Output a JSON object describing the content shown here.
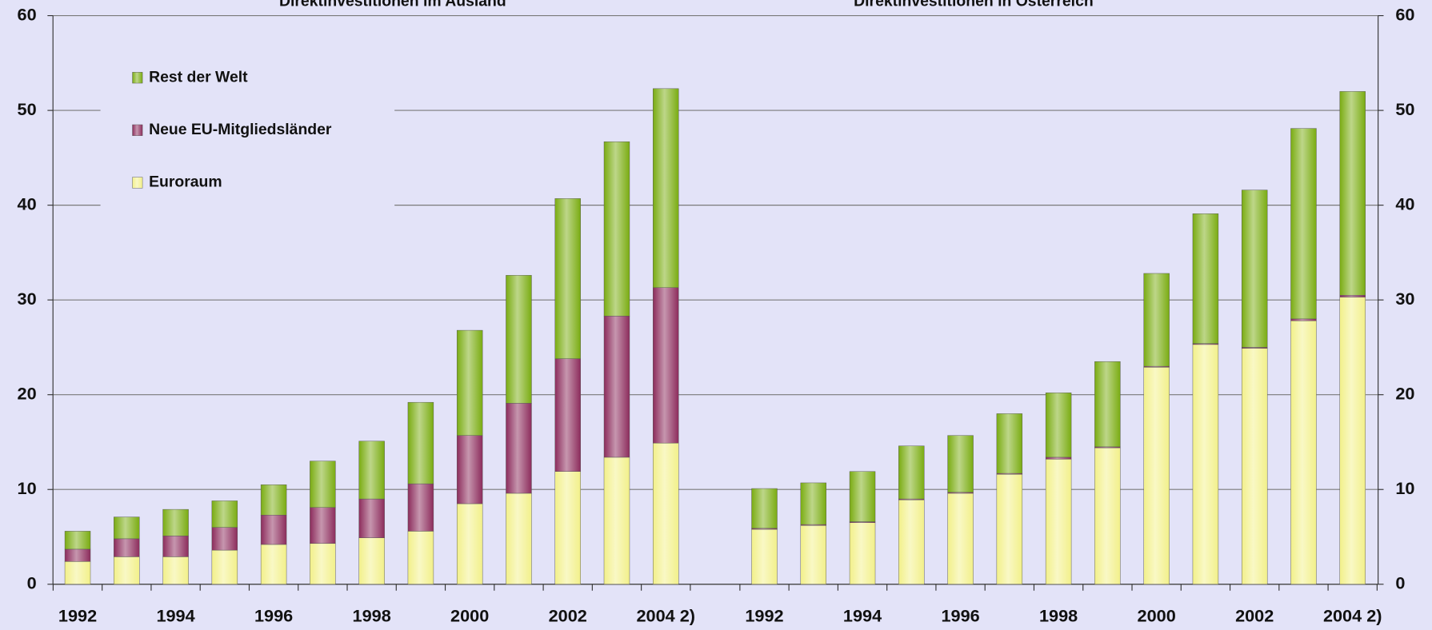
{
  "chart_data": [
    {
      "type": "bar",
      "stacked": true,
      "title": "Direktinvestitionen im Ausland",
      "categories": [
        "1992",
        null,
        "1994",
        null,
        "1996",
        null,
        "1998",
        null,
        "2000",
        null,
        "2002",
        null,
        "2004 2)"
      ],
      "series": [
        {
          "name": "Euroraum",
          "color": "#f2f08a",
          "values": [
            2.4,
            2.9,
            2.9,
            3.6,
            4.2,
            4.3,
            4.9,
            5.6,
            8.5,
            9.6,
            11.9,
            13.4,
            14.9
          ]
        },
        {
          "name": "Neue EU-Mitgliedsländer",
          "color": "#8c2c5c",
          "values": [
            1.3,
            1.9,
            2.2,
            2.4,
            3.1,
            3.8,
            4.1,
            5.0,
            7.2,
            9.5,
            11.9,
            14.9,
            16.4
          ]
        },
        {
          "name": "Rest der Welt",
          "color": "#7aac12",
          "values": [
            1.9,
            2.3,
            2.8,
            2.8,
            3.2,
            4.9,
            6.1,
            8.6,
            11.1,
            13.5,
            16.9,
            18.4,
            21.0
          ]
        }
      ],
      "ylim": [
        0,
        60
      ],
      "yticks": [
        0,
        10,
        20,
        30,
        40,
        50,
        60
      ],
      "grid": true,
      "legend": "upper left"
    },
    {
      "type": "bar",
      "stacked": true,
      "title": "Direktinvestitionen in Österreich",
      "categories": [
        "1992",
        null,
        "1994",
        null,
        "1996",
        null,
        "1998",
        null,
        "2000",
        null,
        "2002",
        null,
        "2004 2)"
      ],
      "series": [
        {
          "color": "#f2f08a",
          "values": [
            5.8,
            6.2,
            6.5,
            8.9,
            9.6,
            11.6,
            13.2,
            14.4,
            22.9,
            25.3,
            24.9,
            27.8,
            30.3
          ]
        },
        {
          "color": "#8c2c5c",
          "values": [
            0.1,
            0.1,
            0.1,
            0.1,
            0.1,
            0.1,
            0.2,
            0.1,
            0.1,
            0.1,
            0.1,
            0.2,
            0.2
          ]
        },
        {
          "color": "#7aac12",
          "values": [
            4.2,
            4.4,
            5.3,
            5.6,
            6.0,
            6.3,
            6.8,
            9.0,
            9.8,
            13.7,
            16.6,
            20.1,
            21.5
          ]
        }
      ],
      "ylim": [
        0,
        60
      ],
      "yticks": [
        0,
        10,
        20,
        30,
        40,
        50,
        60
      ]
    }
  ]
}
